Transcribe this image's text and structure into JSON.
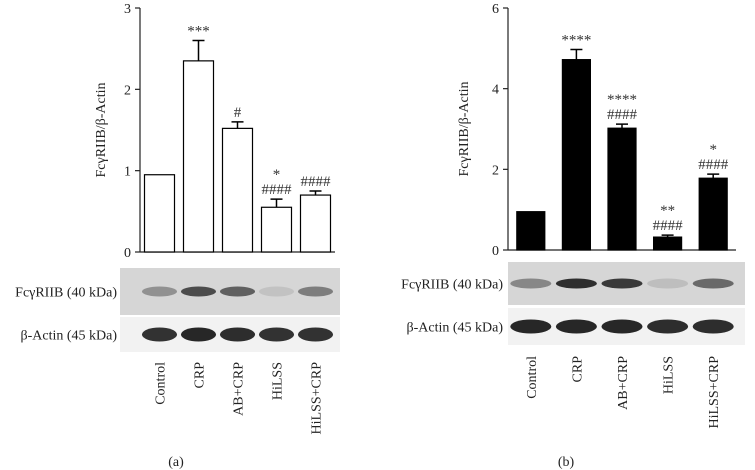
{
  "chart_data": [
    {
      "type": "bar",
      "panel_label": "(a)",
      "y_label": "FcγRIIB/β-Actin",
      "categories": [
        "Control",
        "CRP",
        "AB+CRP",
        "HiLSS",
        "HiLSS+CRP"
      ],
      "values": [
        0.95,
        2.35,
        1.52,
        0.55,
        0.7
      ],
      "errors": [
        null,
        0.25,
        0.08,
        0.1,
        0.05
      ],
      "annotations": [
        [],
        [
          "***"
        ],
        [
          "#"
        ],
        [
          "*",
          "####"
        ],
        [
          "####"
        ]
      ],
      "color": "#ffffff",
      "ylim": [
        0,
        3
      ],
      "yticks": [
        0,
        1,
        2,
        3
      ],
      "blot_labels": [
        "FcγRIIB (40 kDa)",
        "β-Actin (45 kDa)"
      ]
    },
    {
      "type": "bar",
      "panel_label": "(b)",
      "y_label": "FcγRIIB/β-Actin",
      "categories": [
        "Control",
        "CRP",
        "AB+CRP",
        "HiLSS",
        "HiLSS+CRP"
      ],
      "values": [
        0.95,
        4.72,
        3.02,
        0.32,
        1.78
      ],
      "errors": [
        null,
        0.25,
        0.1,
        0.05,
        0.1
      ],
      "annotations": [
        [],
        [
          "****"
        ],
        [
          "****",
          "####"
        ],
        [
          "**",
          "####"
        ],
        [
          "*",
          "####"
        ]
      ],
      "color": "#000000",
      "ylim": [
        0,
        6
      ],
      "yticks": [
        0,
        2,
        4,
        6
      ],
      "blot_labels": [
        "FcγRIIB (40 kDa)",
        "β-Actin (45 kDa)"
      ]
    }
  ]
}
